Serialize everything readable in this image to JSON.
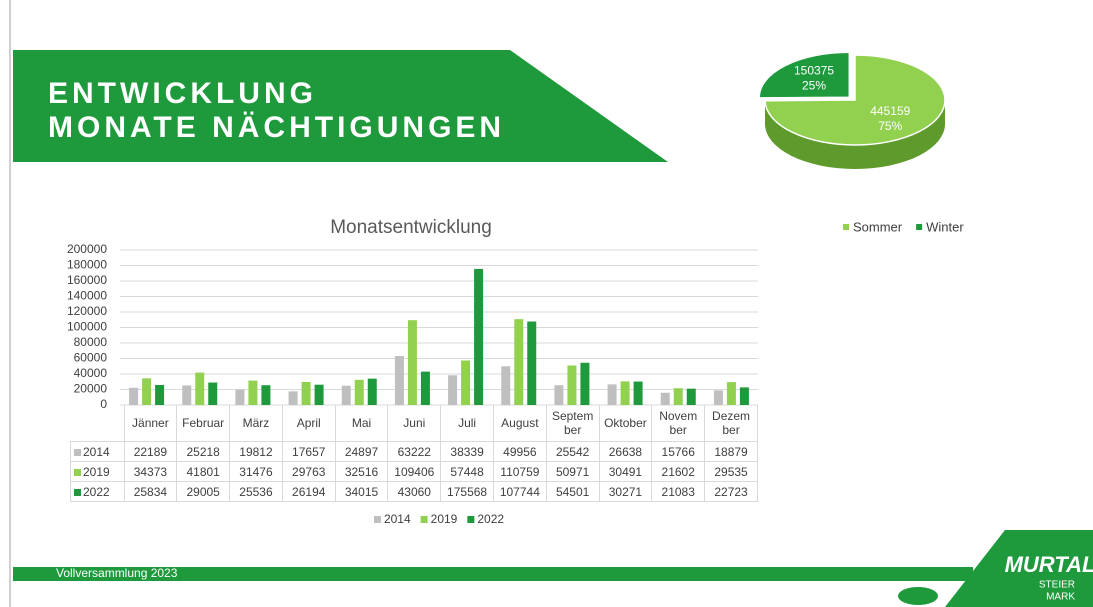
{
  "header": {
    "title_lines": [
      "ENTWICKLUNG",
      "MONATE NÄCHTIGUNGEN"
    ]
  },
  "footer": {
    "text": "Vollversammlung 2023"
  },
  "logo": {
    "name": "MURTAL",
    "sub": [
      "STEIER",
      "MARK"
    ]
  },
  "chart_data": [
    {
      "type": "pie",
      "categories": [
        "Sommer",
        "Winter"
      ],
      "values": [
        445159,
        150375
      ],
      "percent_labels": [
        "75%",
        "25%"
      ],
      "colors": [
        "#92d050",
        "#1e9a3c"
      ],
      "legend": "bottom"
    },
    {
      "type": "bar",
      "title": "Monatsentwicklung",
      "categories": [
        "Jänner",
        "Februar",
        "März",
        "April",
        "Mai",
        "Juni",
        "Juli",
        "August",
        "Septem ber",
        "Oktober",
        "Novem ber",
        "Dezem ber"
      ],
      "series": [
        {
          "name": "2014",
          "color": "#bfbfbf",
          "values": [
            22189,
            25218,
            19812,
            17657,
            24897,
            63222,
            38339,
            49956,
            25542,
            26638,
            15766,
            18879
          ]
        },
        {
          "name": "2019",
          "color": "#92d050",
          "values": [
            34373,
            41801,
            31476,
            29763,
            32516,
            109406,
            57448,
            110759,
            50971,
            30491,
            21602,
            29535
          ]
        },
        {
          "name": "2022",
          "color": "#1e9a3c",
          "values": [
            25834,
            29005,
            25536,
            26194,
            34015,
            43060,
            175568,
            107744,
            54501,
            30271,
            21083,
            22723
          ]
        }
      ],
      "ylim": [
        0,
        200000
      ],
      "yticks": [
        0,
        20000,
        40000,
        60000,
        80000,
        100000,
        120000,
        140000,
        160000,
        180000,
        200000
      ],
      "grid": true,
      "legend": "bottom"
    }
  ]
}
